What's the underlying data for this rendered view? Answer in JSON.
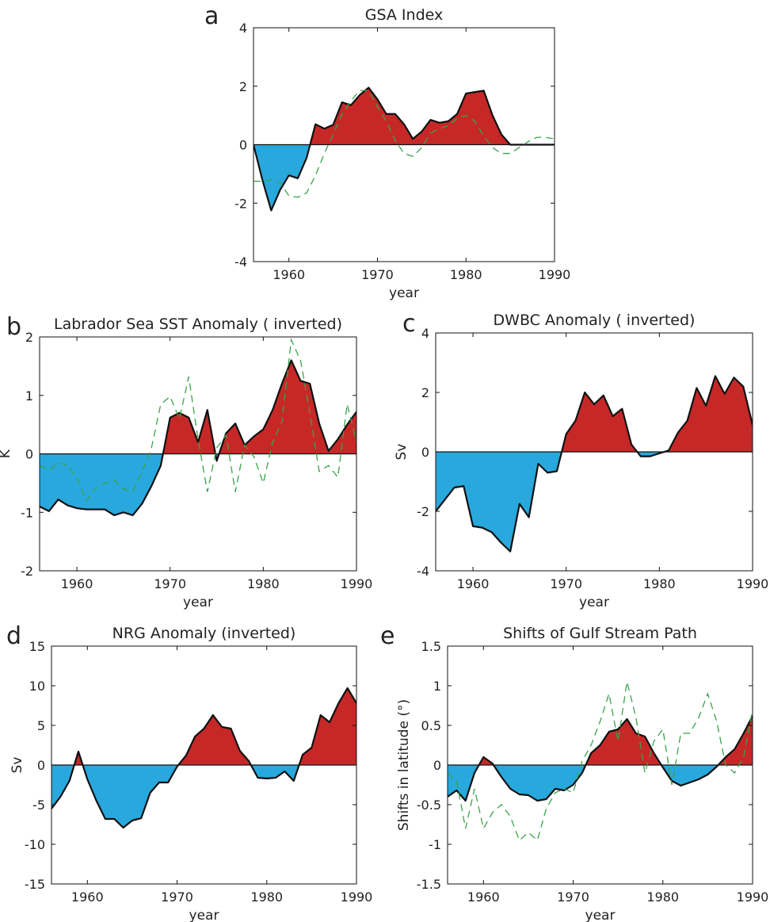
{
  "chart_data": [
    {
      "type": "area",
      "letter": "a",
      "title": "GSA Index",
      "xlabel": "year",
      "ylabel": "",
      "xlim": [
        1956,
        1990
      ],
      "ylim": [
        -4,
        4
      ],
      "xticks": [
        1960,
        1970,
        1980,
        1990
      ],
      "yticks": [
        -4,
        -2,
        0,
        2,
        4
      ],
      "grid": false,
      "positive_color": "#c62828",
      "negative_color": "#29a8dd",
      "series": [
        {
          "style": "solid-black",
          "x": [
            1956,
            1957,
            1958,
            1959,
            1960,
            1961,
            1962,
            1963,
            1964,
            1965,
            1966,
            1967,
            1968,
            1969,
            1970,
            1971,
            1972,
            1973,
            1974,
            1975,
            1976,
            1977,
            1978,
            1979,
            1980,
            1981,
            1982,
            1983,
            1984,
            1985,
            1986,
            1987,
            1988,
            1989,
            1990
          ],
          "y": [
            0,
            -1.2,
            -2.25,
            -1.55,
            -1.05,
            -1.15,
            -0.45,
            0.7,
            0.55,
            0.68,
            1.45,
            1.35,
            1.7,
            1.95,
            1.55,
            1.05,
            1.05,
            0.7,
            0.2,
            0.45,
            0.85,
            0.75,
            0.8,
            1.05,
            1.75,
            1.8,
            1.85,
            1.0,
            0.35,
            0,
            0,
            0,
            0,
            0,
            0
          ]
        },
        {
          "style": "dashed-green",
          "x": [
            1956,
            1957,
            1958,
            1959,
            1960,
            1961,
            1962,
            1963,
            1964,
            1965,
            1966,
            1967,
            1968,
            1969,
            1970,
            1971,
            1972,
            1973,
            1974,
            1975,
            1976,
            1977,
            1978,
            1979,
            1980,
            1981,
            1982,
            1983,
            1984,
            1985,
            1986,
            1987,
            1988,
            1989,
            1990
          ],
          "y": [
            -1.25,
            -1.25,
            -1.2,
            -1.3,
            -1.75,
            -1.8,
            -1.65,
            -1.05,
            -0.3,
            0.35,
            1.05,
            1.5,
            1.85,
            1.85,
            1.3,
            0.8,
            0.15,
            -0.3,
            -0.4,
            -0.1,
            0.4,
            0.55,
            0.65,
            0.9,
            1.0,
            0.8,
            0.3,
            -0.1,
            -0.3,
            -0.3,
            -0.1,
            0.1,
            0.25,
            0.25,
            0.2
          ]
        }
      ]
    },
    {
      "type": "area",
      "letter": "b",
      "title": "Labrador Sea SST Anomaly ( inverted)",
      "xlabel": "year",
      "ylabel": "K",
      "xlim": [
        1956,
        1990
      ],
      "ylim": [
        -2,
        2
      ],
      "xticks": [
        1960,
        1970,
        1980,
        1990
      ],
      "yticks": [
        -2,
        -1,
        0,
        1,
        2
      ],
      "grid": false,
      "positive_color": "#c62828",
      "negative_color": "#29a8dd",
      "series": [
        {
          "style": "solid-black",
          "x": [
            1956,
            1957,
            1958,
            1959,
            1960,
            1961,
            1962,
            1963,
            1964,
            1965,
            1966,
            1967,
            1968,
            1969,
            1970,
            1971,
            1972,
            1973,
            1974,
            1975,
            1976,
            1977,
            1978,
            1979,
            1980,
            1981,
            1982,
            1983,
            1984,
            1985,
            1986,
            1987,
            1988,
            1989,
            1990
          ],
          "y": [
            -0.9,
            -0.98,
            -0.78,
            -0.88,
            -0.93,
            -0.95,
            -0.95,
            -0.95,
            -1.05,
            -1.0,
            -1.05,
            -0.85,
            -0.55,
            -0.2,
            0.62,
            0.7,
            0.62,
            0.2,
            0.75,
            -0.12,
            0.35,
            0.52,
            0.15,
            0.3,
            0.42,
            0.75,
            1.2,
            1.6,
            1.25,
            1.2,
            0.52,
            0.05,
            0.25,
            0.5,
            0.72
          ]
        },
        {
          "style": "dashed-green",
          "x": [
            1956,
            1957,
            1958,
            1959,
            1960,
            1961,
            1962,
            1963,
            1964,
            1965,
            1966,
            1967,
            1968,
            1969,
            1970,
            1971,
            1972,
            1973,
            1974,
            1975,
            1976,
            1977,
            1978,
            1979,
            1980,
            1981,
            1982,
            1983,
            1984,
            1985,
            1986,
            1987,
            1988,
            1989,
            1990
          ],
          "y": [
            -0.2,
            -0.28,
            -0.15,
            -0.2,
            -0.4,
            -0.8,
            -0.6,
            -0.5,
            -0.45,
            -0.6,
            -0.65,
            -0.3,
            0.1,
            0.85,
            0.98,
            0.6,
            1.32,
            0.25,
            -0.65,
            0.1,
            0.32,
            -0.65,
            0.15,
            -0.05,
            -0.5,
            0.2,
            0.55,
            1.95,
            1.6,
            0.7,
            -0.3,
            -0.2,
            -0.4,
            0.85,
            0.2
          ]
        }
      ]
    },
    {
      "type": "area",
      "letter": "c",
      "title": "DWBC Anomaly ( inverted)",
      "xlabel": "year",
      "ylabel": "Sv",
      "xlim": [
        1956,
        1990
      ],
      "ylim": [
        -4,
        4
      ],
      "xticks": [
        1960,
        1970,
        1980,
        1990
      ],
      "yticks": [
        -4,
        -2,
        0,
        2,
        4
      ],
      "grid": false,
      "positive_color": "#c62828",
      "negative_color": "#29a8dd",
      "series": [
        {
          "style": "solid-black",
          "x": [
            1956,
            1957,
            1958,
            1959,
            1960,
            1961,
            1962,
            1963,
            1964,
            1965,
            1966,
            1967,
            1968,
            1969,
            1970,
            1971,
            1972,
            1973,
            1974,
            1975,
            1976,
            1977,
            1978,
            1979,
            1980,
            1981,
            1982,
            1983,
            1984,
            1985,
            1986,
            1987,
            1988,
            1989,
            1990
          ],
          "y": [
            -2.0,
            -1.6,
            -1.2,
            -1.15,
            -2.5,
            -2.55,
            -2.7,
            -3.05,
            -3.35,
            -1.75,
            -2.2,
            -0.4,
            -0.7,
            -0.65,
            0.6,
            1.05,
            2.0,
            1.6,
            1.9,
            1.2,
            1.45,
            0.25,
            -0.15,
            -0.15,
            -0.05,
            0.05,
            0.65,
            1.05,
            2.15,
            1.55,
            2.55,
            1.95,
            2.5,
            2.2,
            0.9
          ]
        }
      ]
    },
    {
      "type": "area",
      "letter": "d",
      "title": "NRG Anomaly (inverted)",
      "xlabel": "year",
      "ylabel": "Sv",
      "xlim": [
        1956,
        1990
      ],
      "ylim": [
        -15,
        15
      ],
      "xticks": [
        1960,
        1970,
        1980,
        1990
      ],
      "yticks": [
        -15,
        -10,
        -5,
        0,
        5,
        10,
        15
      ],
      "grid": false,
      "positive_color": "#c62828",
      "negative_color": "#29a8dd",
      "series": [
        {
          "style": "solid-black",
          "x": [
            1956,
            1957,
            1958,
            1959,
            1960,
            1961,
            1962,
            1963,
            1964,
            1965,
            1966,
            1967,
            1968,
            1969,
            1970,
            1971,
            1972,
            1973,
            1974,
            1975,
            1976,
            1977,
            1978,
            1979,
            1980,
            1981,
            1982,
            1983,
            1984,
            1985,
            1986,
            1987,
            1988,
            1989,
            1990
          ],
          "y": [
            -5.5,
            -4.0,
            -2.0,
            1.7,
            -1.8,
            -4.5,
            -6.8,
            -6.8,
            -7.9,
            -7.0,
            -6.7,
            -3.5,
            -2.2,
            -2.2,
            -0.2,
            1.2,
            3.6,
            4.6,
            6.3,
            4.8,
            4.6,
            1.8,
            0.5,
            -1.6,
            -1.7,
            -1.6,
            -0.8,
            -2.0,
            1.3,
            2.2,
            6.3,
            5.4,
            7.8,
            9.7,
            7.8
          ]
        }
      ]
    },
    {
      "type": "area",
      "letter": "e",
      "title": "Shifts of Gulf Stream Path",
      "xlabel": "year",
      "ylabel": "Shifts in latitude (°)",
      "xlim": [
        1956,
        1990
      ],
      "ylim": [
        -1.5,
        1.5
      ],
      "xticks": [
        1960,
        1970,
        1980,
        1990
      ],
      "yticks": [
        -1.5,
        -1,
        -0.5,
        0,
        0.5,
        1,
        1.5
      ],
      "grid": false,
      "positive_color": "#c62828",
      "negative_color": "#29a8dd",
      "series": [
        {
          "style": "solid-black",
          "x": [
            1956,
            1957,
            1958,
            1959,
            1960,
            1961,
            1962,
            1963,
            1964,
            1965,
            1966,
            1967,
            1968,
            1969,
            1970,
            1971,
            1972,
            1973,
            1974,
            1975,
            1976,
            1977,
            1978,
            1979,
            1980,
            1981,
            1982,
            1983,
            1984,
            1985,
            1986,
            1987,
            1988,
            1989,
            1990
          ],
          "y": [
            -0.4,
            -0.32,
            -0.45,
            -0.1,
            0.1,
            0.02,
            -0.15,
            -0.3,
            -0.37,
            -0.38,
            -0.45,
            -0.43,
            -0.3,
            -0.32,
            -0.25,
            -0.1,
            0.15,
            0.25,
            0.42,
            0.45,
            0.58,
            0.4,
            0.36,
            0.15,
            -0.03,
            -0.2,
            -0.26,
            -0.22,
            -0.18,
            -0.12,
            -0.02,
            0.1,
            0.2,
            0.4,
            0.62
          ]
        },
        {
          "style": "dashed-green",
          "x": [
            1956,
            1957,
            1958,
            1959,
            1960,
            1961,
            1962,
            1963,
            1964,
            1965,
            1966,
            1967,
            1968,
            1969,
            1970,
            1971,
            1972,
            1973,
            1974,
            1975,
            1976,
            1977,
            1978,
            1979,
            1980,
            1981,
            1982,
            1983,
            1984,
            1985,
            1986,
            1987,
            1988,
            1989,
            1990
          ],
          "y": [
            -0.1,
            -0.2,
            -0.8,
            -0.3,
            -0.8,
            -0.6,
            -0.5,
            -0.65,
            -0.95,
            -0.85,
            -0.95,
            -0.55,
            -0.35,
            -0.3,
            -0.35,
            0.05,
            0.25,
            0.55,
            0.9,
            0.3,
            1.05,
            0.6,
            -0.1,
            0.3,
            0.45,
            -0.25,
            0.4,
            0.4,
            0.6,
            0.9,
            0.55,
            0.0,
            -0.1,
            0.1,
            0.7
          ]
        }
      ]
    }
  ]
}
